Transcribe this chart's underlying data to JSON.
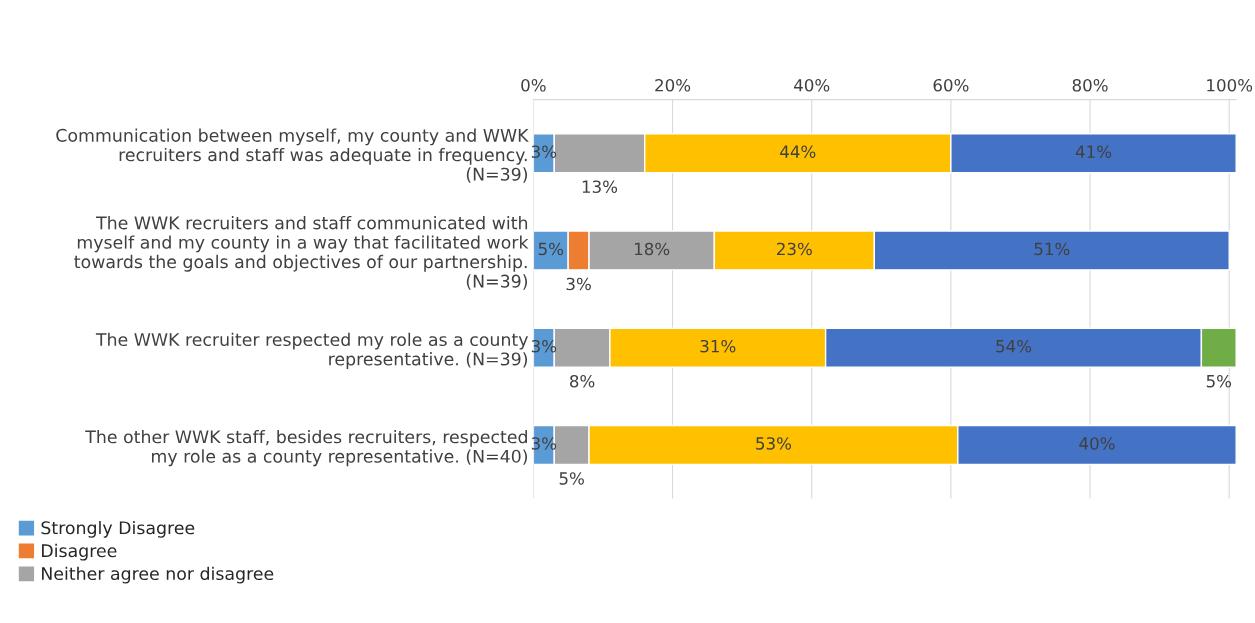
{
  "chart_data": {
    "type": "bar",
    "orientation": "horizontal",
    "stacked": true,
    "grid": "x",
    "legend": "bottom left",
    "categories": [
      "Communication between myself, my county and WWK recruiters and staff was adequate in frequency. (N=39)",
      "The WWK recruiters and staff communicated with myself and my county in a way that facilitated work towards the goals and objectives of our partnership. (N=39)",
      "The WWK recruiter respected my role as a county representative. (N=39)",
      "The other WWK staff, besides recruiters, respected my role as a county representative. (N=40)"
    ],
    "xlim": [
      0,
      101
    ],
    "xticks": [
      {
        "value": 0,
        "label": "0%"
      },
      {
        "value": 20,
        "label": "20%"
      },
      {
        "value": 40,
        "label": "40%"
      },
      {
        "value": 60,
        "label": "60%"
      },
      {
        "value": 80,
        "label": "80%"
      },
      {
        "value": 100,
        "label": "100%"
      }
    ],
    "series": [
      {
        "name": "Strongly Disagree",
        "color": "#5b9bd5",
        "values": [
          3,
          5,
          3,
          3
        ],
        "value_labels": [
          "3%",
          "5%",
          "3%",
          "3%"
        ]
      },
      {
        "name": "Disagree",
        "color": "#ed7d31",
        "values": [
          null,
          3,
          null,
          null
        ],
        "value_labels": [
          null,
          "3%",
          null,
          null
        ]
      },
      {
        "name": "Neither agree nor disagree",
        "color": "#a5a5a5",
        "values": [
          13,
          18,
          8,
          5
        ],
        "value_labels": [
          "13%",
          "18%",
          "8%",
          "5%"
        ]
      },
      {
        "color": "#ffc000",
        "values": [
          44,
          23,
          31,
          53
        ],
        "value_labels": [
          "44%",
          "23%",
          "31%",
          "53%"
        ]
      },
      {
        "color": "#4472c4",
        "values": [
          41,
          51,
          54,
          40
        ],
        "value_labels": [
          "41%",
          "51%",
          "54%",
          "40%"
        ]
      },
      {
        "color": "#70ad47",
        "values": [
          null,
          null,
          5,
          null
        ],
        "value_labels": [
          null,
          null,
          "5%",
          null
        ]
      }
    ]
  }
}
